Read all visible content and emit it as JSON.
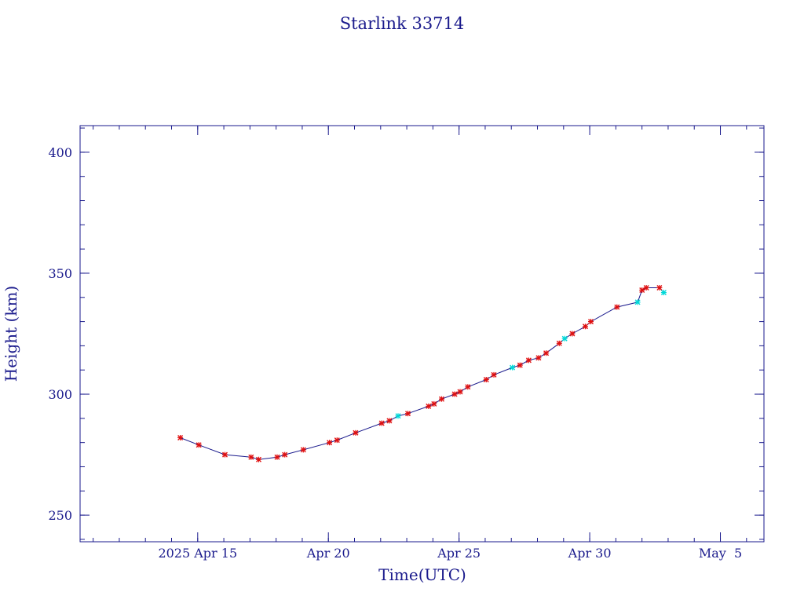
{
  "chart_data": {
    "type": "line",
    "title": "Starlink 33714",
    "xlabel": "Time(UTC)",
    "ylabel": "Height (km)",
    "x_unit": "days",
    "xlim": [
      "2025-04-10T12:00",
      "2025-05-06T16:00"
    ],
    "ylim": [
      239,
      411
    ],
    "x_ticks": [
      {
        "date": "2025-04-15",
        "label": "2025 Apr 15"
      },
      {
        "date": "2025-04-20",
        "label": "Apr 20"
      },
      {
        "date": "2025-04-25",
        "label": "Apr 25"
      },
      {
        "date": "2025-04-30",
        "label": "Apr 30"
      },
      {
        "date": "2025-05-05",
        "label": "May  5"
      }
    ],
    "y_ticks": [
      250,
      300,
      350,
      400
    ],
    "grid": false,
    "colors": {
      "axis": "#1a1a8c",
      "line": "#1a1a8c",
      "marker_primary": "#e01010",
      "marker_secondary": "#00d8d8"
    },
    "series": [
      {
        "x": [
          "2025-04-14T08:00",
          "2025-04-15T01:00",
          "2025-04-16T01:00",
          "2025-04-17T01:00",
          "2025-04-17T08:00",
          "2025-04-18T01:00",
          "2025-04-18T08:00",
          "2025-04-19T01:00",
          "2025-04-20T01:00",
          "2025-04-20T08:00",
          "2025-04-21T01:00",
          "2025-04-22T01:00",
          "2025-04-22T08:00",
          "2025-04-22T16:00",
          "2025-04-23T01:00",
          "2025-04-23T20:00",
          "2025-04-24T01:00",
          "2025-04-24T08:00",
          "2025-04-24T20:00",
          "2025-04-25T01:00",
          "2025-04-25T08:00",
          "2025-04-26T01:00",
          "2025-04-26T08:00",
          "2025-04-27T01:00",
          "2025-04-27T08:00",
          "2025-04-27T16:00",
          "2025-04-28T01:00",
          "2025-04-28T08:00",
          "2025-04-28T20:00",
          "2025-04-29T01:00",
          "2025-04-29T08:00",
          "2025-04-29T20:00",
          "2025-04-30T01:00",
          "2025-05-01T01:00",
          "2025-05-01T20:00",
          "2025-05-02T00:00",
          "2025-05-02T04:00",
          "2025-05-02T16:00",
          "2025-05-02T20:00"
        ],
        "y": [
          282,
          279,
          275,
          274,
          273,
          274,
          275,
          277,
          280,
          281,
          284,
          288,
          289,
          291,
          292,
          295,
          296,
          298,
          300,
          301,
          303,
          306,
          308,
          311,
          312,
          314,
          315,
          317,
          321,
          323,
          325,
          328,
          330,
          336,
          338,
          343,
          344,
          344,
          342
        ],
        "marker": [
          "p",
          "p",
          "p",
          "p",
          "p",
          "p",
          "p",
          "p",
          "p",
          "p",
          "p",
          "p",
          "p",
          "s",
          "p",
          "p",
          "p",
          "p",
          "p",
          "p",
          "p",
          "p",
          "p",
          "s",
          "p",
          "p",
          "p",
          "p",
          "p",
          "s",
          "p",
          "p",
          "p",
          "p",
          "s",
          "p",
          "p",
          "p",
          "s"
        ]
      }
    ]
  }
}
